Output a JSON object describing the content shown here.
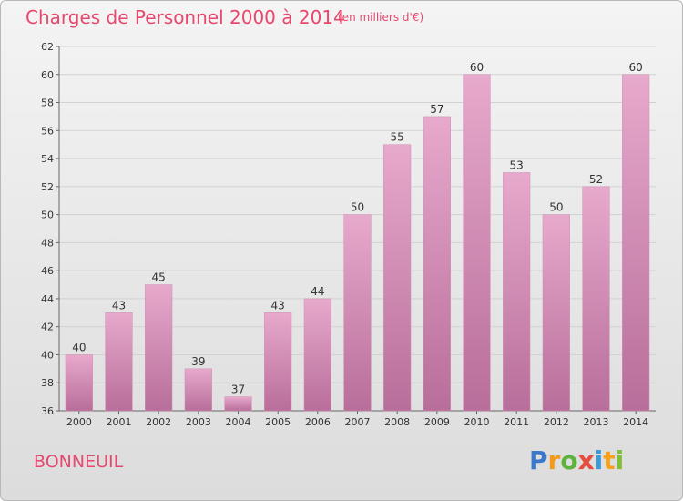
{
  "header": {
    "title": "Charges de Personnel 2000 à 2014",
    "unit_note": "(en milliers d'€)"
  },
  "footer": {
    "commune": "BONNEUIL",
    "logo": [
      "P",
      "r",
      "o",
      "x",
      "i",
      "t",
      "i"
    ]
  },
  "chart_data": {
    "type": "bar",
    "title": "Charges de Personnel 2000 à 2014",
    "subtitle": "(en milliers d'€)",
    "categories": [
      "2000",
      "2001",
      "2002",
      "2003",
      "2004",
      "2005",
      "2006",
      "2007",
      "2008",
      "2009",
      "2010",
      "2011",
      "2012",
      "2013",
      "2014"
    ],
    "values": [
      40,
      43,
      45,
      39,
      37,
      43,
      44,
      50,
      55,
      57,
      60,
      53,
      50,
      52,
      60
    ],
    "ylim": [
      36,
      62
    ],
    "yticks": [
      36,
      38,
      40,
      42,
      44,
      46,
      48,
      50,
      52,
      54,
      56,
      58,
      60,
      62
    ],
    "grid": true,
    "bar_color_top": "#e7a9cc",
    "bar_color_bottom": "#b86e9a",
    "text_color": "#e8476e"
  }
}
